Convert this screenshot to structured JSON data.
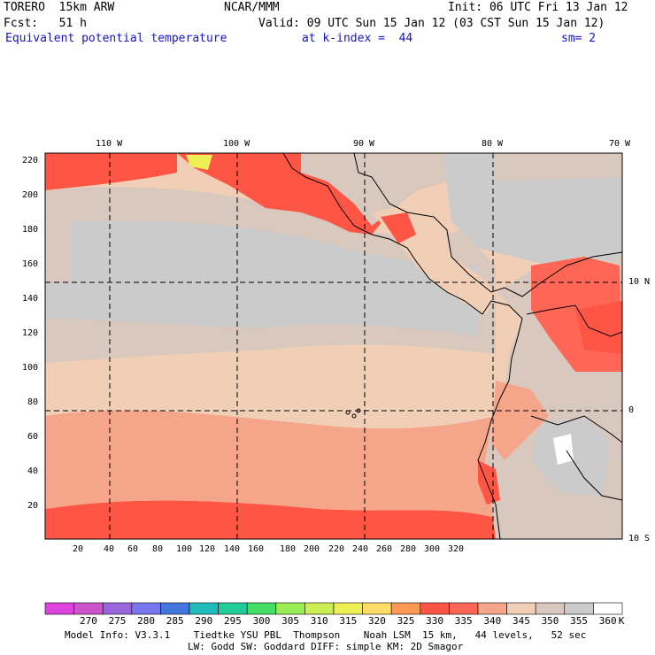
{
  "header": {
    "model": "TORERO  15km ARW",
    "org": "NCAR/MMM",
    "init": "Init: 06 UTC Fri 13 Jan 12",
    "fcst": "Fcst:   51 h",
    "valid": "Valid: 09 UTC Sun 15 Jan 12 (03 CST Sun 15 Jan 12)",
    "field": "Equivalent potential temperature",
    "level": "at k-index =  44",
    "smooth": "sm= 2"
  },
  "map": {
    "lon_labels": [
      "110 W",
      "100 W",
      "90 W",
      "80 W",
      "70 W"
    ],
    "lat_labels": [
      "10 N",
      "0",
      "10 S"
    ],
    "y_ticks": [
      "20",
      "40",
      "60",
      "80",
      "100",
      "120",
      "140",
      "160",
      "180",
      "200",
      "220"
    ],
    "x_ticks": [
      "20",
      "40",
      "60",
      "80",
      "100",
      "120",
      "140",
      "160",
      "180",
      "200",
      "220",
      "240",
      "260",
      "280",
      "300",
      "320"
    ]
  },
  "colorbar": {
    "values": [
      "270",
      "275",
      "280",
      "285",
      "290",
      "295",
      "300",
      "305",
      "310",
      "315",
      "320",
      "325",
      "330",
      "335",
      "340",
      "345",
      "350",
      "355",
      "360"
    ],
    "unit": "K",
    "colors": [
      "#cc55cc",
      "#9966dd",
      "#7777ee",
      "#4477dd",
      "#22bbbb",
      "#22cc99",
      "#44dd66",
      "#99ee55",
      "#ccee55",
      "#eeee55",
      "#ffdd66",
      "#ff9955",
      "#ff5544",
      "#ff6655",
      "#f5a58a",
      "#f0cfb6",
      "#d8c8bd",
      "#cbcbcb",
      "#ffffff"
    ]
  },
  "footer": {
    "line1": "Model Info: V3.3.1    Tiedtke YSU PBL  Thompson    Noah LSM  15 km,   44 levels,   52 sec",
    "line2": "LW: Godd SW: Goddard DIFF: simple KM: 2D Smagor"
  }
}
